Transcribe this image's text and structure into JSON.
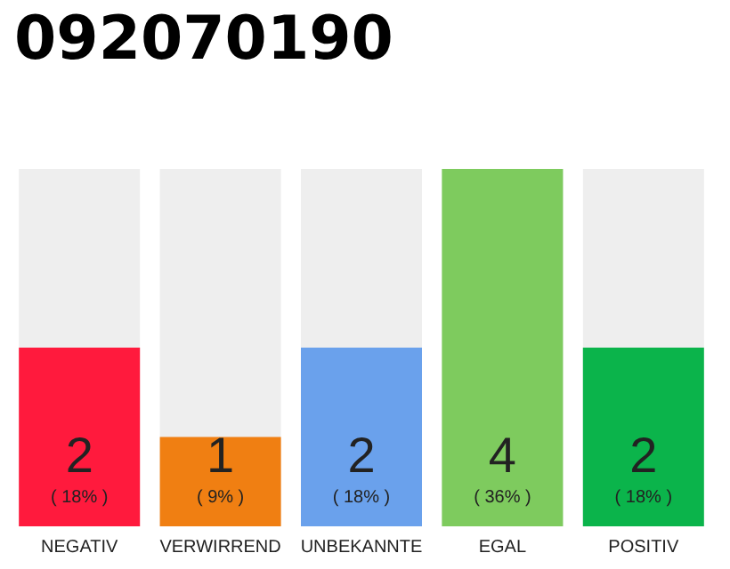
{
  "chart_data": {
    "type": "bar",
    "title": "092070190",
    "categories": [
      "NEGATIV",
      "VERWIRREND",
      "UNBEKANNTE",
      "EGAL",
      "POSITIV"
    ],
    "values": [
      2,
      1,
      2,
      4,
      2
    ],
    "colors": [
      "#ff1a3d",
      "#f07f12",
      "#6aa1ec",
      "#7ecb5e",
      "#0bb44b"
    ],
    "value_labels": [
      "2\n( 18% )",
      "1\n( 9% )",
      "2\n( 18% )",
      "4\n( 36% )",
      "2\n( 18% )"
    ]
  }
}
